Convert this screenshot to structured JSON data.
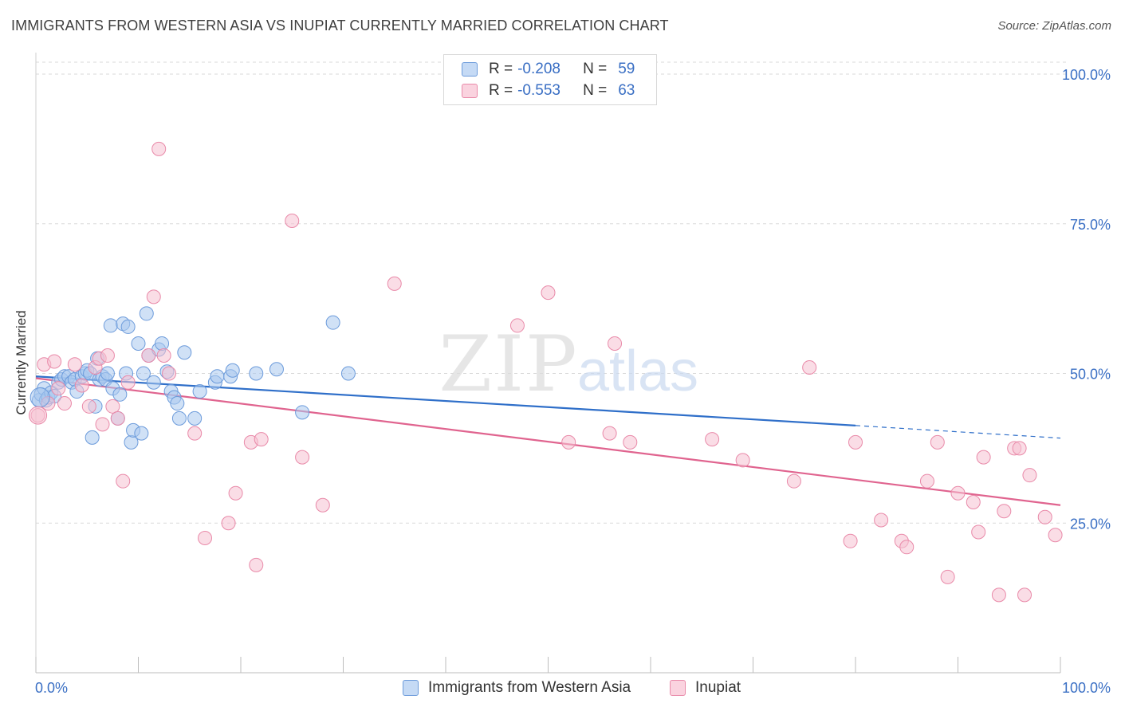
{
  "title": "IMMIGRANTS FROM WESTERN ASIA VS INUPIAT CURRENTLY MARRIED CORRELATION CHART",
  "source": "Source: ZipAtlas.com",
  "watermark": {
    "zip": "ZIP",
    "atlas": "atlas"
  },
  "legend_top": [
    {
      "r_label": "R =",
      "r_value": "-0.208",
      "n_label": "N =",
      "n_value": "59"
    },
    {
      "r_label": "R =",
      "r_value": "-0.553",
      "n_label": "N =",
      "n_value": "63"
    }
  ],
  "legend_bottom": [
    "Immigrants from Western Asia",
    "Inupiat"
  ],
  "colors": {
    "blue_fill": "#a9c8ef",
    "blue_stroke": "#6c9bdb",
    "blue_line": "#2f6fc9",
    "pink_fill": "#f6c1d1",
    "pink_stroke": "#e98aa9",
    "pink_line": "#e0648f",
    "tick_text": "#3a6fc4",
    "grid": "#d9d9d9"
  },
  "chart_data": {
    "type": "scatter",
    "title": "IMMIGRANTS FROM WESTERN ASIA VS INUPIAT CURRENTLY MARRIED CORRELATION CHART",
    "xlabel": "",
    "ylabel": "Currently Married",
    "xlim": [
      0,
      100
    ],
    "ylim": [
      0,
      102
    ],
    "x_tick_labels": [
      "0.0%",
      "100.0%"
    ],
    "y_ticks": [
      25,
      50,
      75,
      100
    ],
    "y_tick_labels": [
      "25.0%",
      "50.0%",
      "75.0%",
      "100.0%"
    ],
    "series": [
      {
        "name": "Immigrants from Western Asia",
        "R": -0.208,
        "N": 59,
        "trend": {
          "x0": 0,
          "y0": 49.5,
          "x1": 80,
          "y1": 41.3,
          "dash_to_x": 100,
          "dash_to_y": 39.2
        },
        "points": [
          [
            0.3,
            45.5
          ],
          [
            0.5,
            46.5
          ],
          [
            0.8,
            47.5
          ],
          [
            1.0,
            45.5
          ],
          [
            1.2,
            46.0
          ],
          [
            1.5,
            46.8
          ],
          [
            1.8,
            46.2
          ],
          [
            2.2,
            48.5
          ],
          [
            2.5,
            49.0
          ],
          [
            2.8,
            49.5
          ],
          [
            3.2,
            49.5
          ],
          [
            3.5,
            48.5
          ],
          [
            3.8,
            49.0
          ],
          [
            4.0,
            47.0
          ],
          [
            4.5,
            49.5
          ],
          [
            4.8,
            50.0
          ],
          [
            5.0,
            50.5
          ],
          [
            5.3,
            50.0
          ],
          [
            5.5,
            39.3
          ],
          [
            5.8,
            44.5
          ],
          [
            6.0,
            52.5
          ],
          [
            6.2,
            49.0
          ],
          [
            6.5,
            49.5
          ],
          [
            6.8,
            49.0
          ],
          [
            7.0,
            50.0
          ],
          [
            7.3,
            58.0
          ],
          [
            7.5,
            47.5
          ],
          [
            8.0,
            42.5
          ],
          [
            8.2,
            46.5
          ],
          [
            8.5,
            58.3
          ],
          [
            8.8,
            50.0
          ],
          [
            9.0,
            57.8
          ],
          [
            9.3,
            38.5
          ],
          [
            9.5,
            40.5
          ],
          [
            10.0,
            55.0
          ],
          [
            10.3,
            40.0
          ],
          [
            10.5,
            50.0
          ],
          [
            10.8,
            60.0
          ],
          [
            11.0,
            53.0
          ],
          [
            11.5,
            48.5
          ],
          [
            12.0,
            54.0
          ],
          [
            12.3,
            55.0
          ],
          [
            12.8,
            50.3
          ],
          [
            13.2,
            47.0
          ],
          [
            13.5,
            46.0
          ],
          [
            13.8,
            45.0
          ],
          [
            14.0,
            42.5
          ],
          [
            14.5,
            53.5
          ],
          [
            15.5,
            42.5
          ],
          [
            16.0,
            47.0
          ],
          [
            17.5,
            48.5
          ],
          [
            17.7,
            49.5
          ],
          [
            19.0,
            49.5
          ],
          [
            19.2,
            50.5
          ],
          [
            21.5,
            50.0
          ],
          [
            23.5,
            50.7
          ],
          [
            26.0,
            43.5
          ],
          [
            29.0,
            58.5
          ],
          [
            30.5,
            50.0
          ]
        ]
      },
      {
        "name": "Inupiat",
        "R": -0.553,
        "N": 63,
        "trend": {
          "x0": 0,
          "y0": 49.2,
          "x1": 100,
          "y1": 28.0
        },
        "points": [
          [
            0.2,
            43.0
          ],
          [
            0.8,
            51.5
          ],
          [
            1.2,
            45.0
          ],
          [
            1.8,
            52.0
          ],
          [
            2.2,
            47.5
          ],
          [
            2.8,
            45.0
          ],
          [
            3.8,
            51.5
          ],
          [
            4.5,
            48.0
          ],
          [
            5.2,
            44.5
          ],
          [
            5.8,
            51.0
          ],
          [
            6.2,
            52.5
          ],
          [
            6.5,
            41.5
          ],
          [
            7.0,
            53.0
          ],
          [
            7.5,
            44.5
          ],
          [
            8.0,
            42.5
          ],
          [
            8.5,
            32.0
          ],
          [
            9.0,
            48.5
          ],
          [
            11.0,
            53.0
          ],
          [
            11.5,
            62.8
          ],
          [
            12.0,
            87.5
          ],
          [
            12.5,
            53.0
          ],
          [
            13.0,
            50.0
          ],
          [
            15.5,
            40.0
          ],
          [
            16.5,
            22.5
          ],
          [
            18.8,
            25.0
          ],
          [
            19.5,
            30.0
          ],
          [
            21.0,
            38.5
          ],
          [
            21.5,
            18.0
          ],
          [
            22.0,
            39.0
          ],
          [
            25.0,
            75.5
          ],
          [
            26.0,
            36.0
          ],
          [
            28.0,
            28.0
          ],
          [
            35.0,
            65.0
          ],
          [
            47.0,
            58.0
          ],
          [
            50.0,
            63.5
          ],
          [
            52.0,
            38.5
          ],
          [
            56.0,
            40.0
          ],
          [
            56.5,
            55.0
          ],
          [
            58.0,
            38.5
          ],
          [
            66.0,
            39.0
          ],
          [
            69.0,
            35.5
          ],
          [
            74.0,
            32.0
          ],
          [
            75.5,
            51.0
          ],
          [
            79.5,
            22.0
          ],
          [
            80.0,
            38.5
          ],
          [
            82.5,
            25.5
          ],
          [
            84.5,
            22.0
          ],
          [
            85.0,
            21.0
          ],
          [
            87.0,
            32.0
          ],
          [
            88.0,
            38.5
          ],
          [
            89.0,
            16.0
          ],
          [
            90.0,
            30.0
          ],
          [
            91.5,
            28.5
          ],
          [
            92.0,
            23.5
          ],
          [
            92.5,
            36.0
          ],
          [
            94.0,
            13.0
          ],
          [
            94.5,
            27.0
          ],
          [
            95.5,
            37.5
          ],
          [
            96.0,
            37.5
          ],
          [
            96.5,
            13.0
          ],
          [
            97.0,
            33.0
          ],
          [
            98.5,
            26.0
          ],
          [
            99.5,
            23.0
          ]
        ]
      }
    ]
  }
}
